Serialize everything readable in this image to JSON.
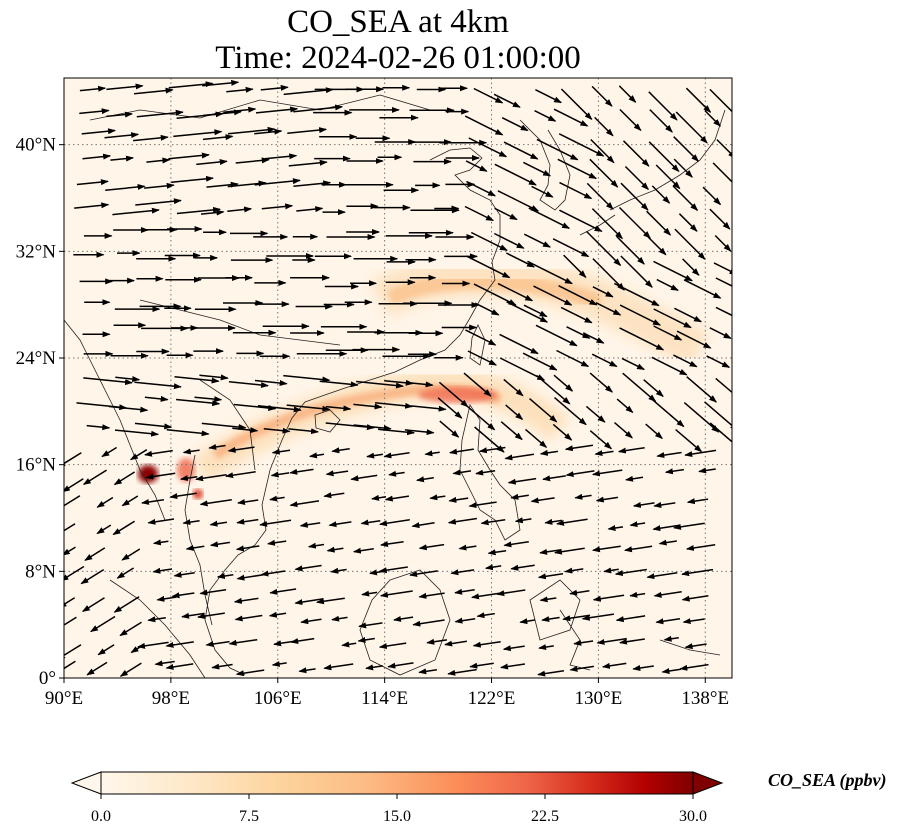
{
  "title": {
    "line1": "CO_SEA at 4km",
    "line2": "Time: 2024-02-26 01:00:00"
  },
  "map": {
    "projection": "PlateCarree",
    "lon_range": [
      90,
      140
    ],
    "lat_range": [
      0,
      45
    ],
    "gridlines": "dotted",
    "coastlines": true,
    "x_ticks": [
      {
        "value": 90,
        "label": "90°E"
      },
      {
        "value": 98,
        "label": "98°E"
      },
      {
        "value": 106,
        "label": "106°E"
      },
      {
        "value": 114,
        "label": "114°E"
      },
      {
        "value": 122,
        "label": "122°E"
      },
      {
        "value": 130,
        "label": "130°E"
      },
      {
        "value": 138,
        "label": "138°E"
      }
    ],
    "y_ticks": [
      {
        "value": 0,
        "label": "0°"
      },
      {
        "value": 8,
        "label": "8°N"
      },
      {
        "value": 16,
        "label": "16°N"
      },
      {
        "value": 24,
        "label": "24°N"
      },
      {
        "value": 32,
        "label": "32°N"
      },
      {
        "value": 40,
        "label": "40°N"
      }
    ]
  },
  "colorbar": {
    "label": "CO_SEA (ppbv)",
    "colormap": "OrRd",
    "min": 0.0,
    "max": 30.0,
    "extend": "both",
    "ticks": [
      "0.0",
      "7.5",
      "15.0",
      "22.5",
      "30.0"
    ],
    "colors": [
      "#fff7ec",
      "#fee8c8",
      "#fdd49e",
      "#fdbb84",
      "#fc8d59",
      "#ef6548",
      "#d7301f",
      "#b30000",
      "#7f0000"
    ]
  }
}
